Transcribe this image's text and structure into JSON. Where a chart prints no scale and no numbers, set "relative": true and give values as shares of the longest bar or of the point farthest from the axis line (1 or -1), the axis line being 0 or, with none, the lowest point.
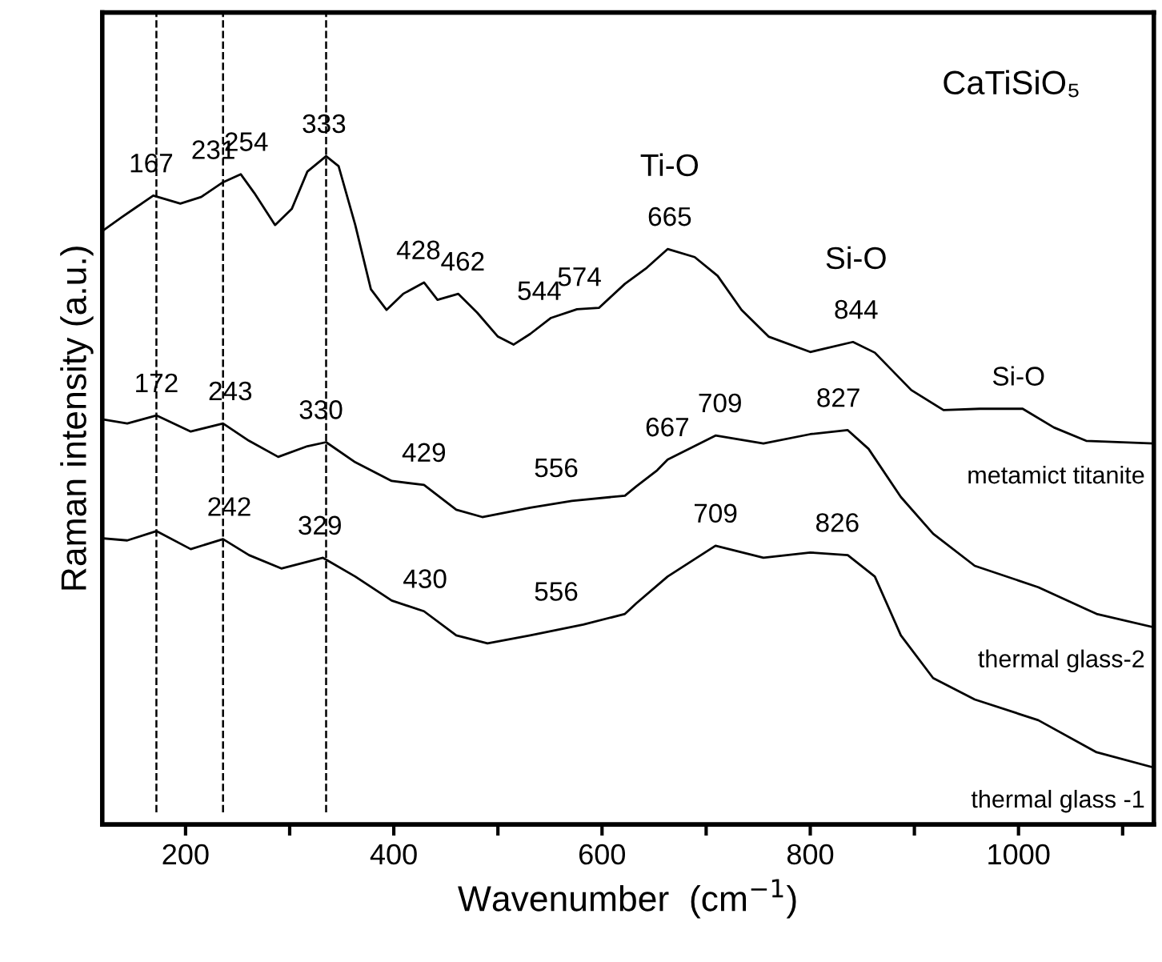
{
  "chart_data": {
    "type": "line",
    "title": "CaTiSiO₅",
    "xlabel": "Wavenumber  (cm$^{−1}$)",
    "ylabel": "Raman intensity (a.u.)",
    "relative": true,
    "xlim": [
      120,
      1130
    ],
    "xticks": [
      200,
      {
        "value": 300,
        "label": null
      },
      400,
      {
        "value": 500,
        "label": null
      },
      600,
      {
        "value": 700,
        "label": null
      },
      800,
      {
        "value": 900,
        "label": null
      },
      1000,
      {
        "value": 1100,
        "label": null
      }
    ],
    "series": [
      {
        "name": "metamict titanite",
        "color": "#000000",
        "x": [
          121,
          139,
          154,
          169,
          195,
          215,
          236,
          253,
          266,
          286,
          302,
          317,
          335,
          347,
          363,
          378,
          393,
          409,
          429,
          442,
          462,
          480,
          500,
          515,
          531,
          551,
          576,
          597,
          622,
          643,
          663,
          689,
          711,
          734,
          760,
          800,
          841,
          862,
          897,
          928,
          963,
          1004,
          1034,
          1065,
          1130
        ],
        "values": [
          0.889,
          0.909,
          0.925,
          0.941,
          0.929,
          0.939,
          0.961,
          0.973,
          0.945,
          0.897,
          0.921,
          0.977,
          1.0,
          0.985,
          0.897,
          0.801,
          0.77,
          0.794,
          0.811,
          0.785,
          0.794,
          0.766,
          0.73,
          0.718,
          0.734,
          0.758,
          0.771,
          0.773,
          0.809,
          0.833,
          0.861,
          0.849,
          0.821,
          0.77,
          0.73,
          0.707,
          0.722,
          0.706,
          0.65,
          0.62,
          0.622,
          0.622,
          0.594,
          0.574,
          0.57
        ]
      },
      {
        "name": "thermal glass-2",
        "color": "#000000",
        "x": [
          121,
          144,
          172,
          205,
          236,
          261,
          289,
          317,
          335,
          363,
          398,
          429,
          460,
          485,
          531,
          571,
          622,
          633,
          653,
          663,
          709,
          755,
          800,
          836,
          856,
          887,
          918,
          958,
          1019,
          1075,
          1130
        ],
        "values": [
          0.606,
          0.6,
          0.612,
          0.588,
          0.6,
          0.574,
          0.55,
          0.566,
          0.572,
          0.542,
          0.514,
          0.508,
          0.471,
          0.46,
          0.474,
          0.484,
          0.492,
          0.506,
          0.53,
          0.546,
          0.582,
          0.57,
          0.584,
          0.59,
          0.562,
          0.49,
          0.435,
          0.387,
          0.355,
          0.315,
          0.295
        ]
      },
      {
        "name": "thermal glass -1",
        "color": "#000000",
        "x": [
          121,
          144,
          172,
          205,
          236,
          261,
          292,
          332,
          363,
          398,
          429,
          460,
          490,
          531,
          582,
          622,
          633,
          663,
          709,
          755,
          800,
          836,
          862,
          887,
          918,
          958,
          1019,
          1075,
          1130
        ],
        "values": [
          0.428,
          0.425,
          0.439,
          0.412,
          0.427,
          0.403,
          0.383,
          0.399,
          0.371,
          0.335,
          0.319,
          0.283,
          0.271,
          0.283,
          0.299,
          0.315,
          0.331,
          0.371,
          0.417,
          0.399,
          0.407,
          0.403,
          0.371,
          0.283,
          0.219,
          0.187,
          0.156,
          0.108,
          0.085
        ]
      }
    ],
    "ref_lines": [
      {
        "axis": "x",
        "value": 172,
        "line_style": "dashed",
        "color": "#000000"
      },
      {
        "axis": "x",
        "value": 236,
        "line_style": "dashed",
        "color": "#000000"
      },
      {
        "axis": "x",
        "value": 335,
        "line_style": "dashed",
        "color": "#000000"
      }
    ],
    "annotations": [
      {
        "text": "167",
        "x": 167,
        "y": 0.941
      },
      {
        "text": "231",
        "x": 231,
        "y": 0.961
      },
      {
        "text": "254",
        "x": 254,
        "y": 0.973
      },
      {
        "text": "333",
        "x": 333,
        "y": 1.0
      },
      {
        "text": "428",
        "x": 428,
        "y": 0.811
      },
      {
        "text": "462",
        "x": 462,
        "y": 0.794
      },
      {
        "text": "544",
        "x": 544,
        "y": 0.75
      },
      {
        "text": "574",
        "x": 574,
        "y": 0.771
      },
      {
        "text": "665",
        "x": 665,
        "y": 0.861
      },
      {
        "text": "Ti-O",
        "x": 665,
        "y": 0.861
      },
      {
        "text": "844",
        "x": 844,
        "y": 0.722
      },
      {
        "text": "Si-O",
        "x": 844,
        "y": 0.722
      },
      {
        "text": "Si-O",
        "x": 1000,
        "y": 0.622
      },
      {
        "text": "172",
        "x": 172,
        "y": 0.612
      },
      {
        "text": "243",
        "x": 243,
        "y": 0.6
      },
      {
        "text": "330",
        "x": 330,
        "y": 0.572
      },
      {
        "text": "429",
        "x": 429,
        "y": 0.508
      },
      {
        "text": "556",
        "x": 556,
        "y": 0.485
      },
      {
        "text": "667",
        "x": 667,
        "y": 0.546
      },
      {
        "text": "709",
        "x": 709,
        "y": 0.582
      },
      {
        "text": "827",
        "x": 827,
        "y": 0.59
      },
      {
        "text": "242",
        "x": 242,
        "y": 0.427
      },
      {
        "text": "329",
        "x": 329,
        "y": 0.399
      },
      {
        "text": "430",
        "x": 430,
        "y": 0.319
      },
      {
        "text": "556",
        "x": 556,
        "y": 0.3
      },
      {
        "text": "709",
        "x": 709,
        "y": 0.417
      },
      {
        "text": "826",
        "x": 826,
        "y": 0.403
      }
    ]
  }
}
